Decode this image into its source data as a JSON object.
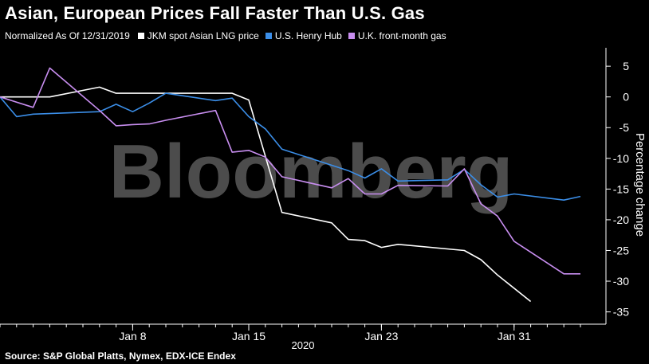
{
  "title": "Asian, European Prices Fall Faster Than U.S. Gas",
  "legend": {
    "normalized": "Normalized As Of 12/31/2019",
    "items": [
      {
        "label": "JKM spot Asian LNG price",
        "color": "#ffffff"
      },
      {
        "label": "U.S. Henry Hub",
        "color": "#3b8ee8"
      },
      {
        "label": "U.K. front-month gas",
        "color": "#c88ef0"
      }
    ]
  },
  "watermark": "Bloomberg",
  "source": "Source: S&P Global Platts, Nymex, EDX-ICE Endex",
  "chart_data": {
    "type": "line",
    "ylabel": "Percentage change",
    "xlabel": "2020",
    "ylim": [
      -37,
      8
    ],
    "xlim": [
      "2019-12-31",
      "2020-02-04"
    ],
    "yticks": [
      5,
      0,
      -5,
      -10,
      -15,
      -20,
      -25,
      -30,
      -35
    ],
    "xticks": [
      {
        "date": "2020-01-08",
        "label": "Jan 8"
      },
      {
        "date": "2020-01-15",
        "label": "Jan 15"
      },
      {
        "date": "2020-01-23",
        "label": "Jan 23"
      },
      {
        "date": "2020-01-31",
        "label": "Jan 31"
      }
    ],
    "series": [
      {
        "name": "JKM spot Asian LNG price",
        "color": "#ffffff",
        "points": [
          [
            "2019-12-31",
            0
          ],
          [
            "2020-01-03",
            0
          ],
          [
            "2020-01-06",
            1.6
          ],
          [
            "2020-01-07",
            0.6
          ],
          [
            "2020-01-13",
            0.6
          ],
          [
            "2020-01-14",
            0.6
          ],
          [
            "2020-01-15",
            -0.5
          ],
          [
            "2020-01-17",
            -18.8
          ],
          [
            "2020-01-20",
            -20.5
          ],
          [
            "2020-01-21",
            -23.2
          ],
          [
            "2020-01-22",
            -23.4
          ],
          [
            "2020-01-23",
            -24.5
          ],
          [
            "2020-01-24",
            -24.0
          ],
          [
            "2020-01-28",
            -25.0
          ],
          [
            "2020-01-29",
            -26.5
          ],
          [
            "2020-01-30",
            -29.0
          ],
          [
            "2020-02-01",
            -33.3
          ]
        ]
      },
      {
        "name": "U.S. Henry Hub",
        "color": "#3b8ee8",
        "points": [
          [
            "2019-12-31",
            0
          ],
          [
            "2020-01-01",
            -3.2
          ],
          [
            "2020-01-02",
            -2.8
          ],
          [
            "2020-01-06",
            -2.4
          ],
          [
            "2020-01-07",
            -1.2
          ],
          [
            "2020-01-08",
            -2.4
          ],
          [
            "2020-01-09",
            -1.0
          ],
          [
            "2020-01-10",
            0.6
          ],
          [
            "2020-01-13",
            -0.6
          ],
          [
            "2020-01-14",
            -0.2
          ],
          [
            "2020-01-15",
            -3.2
          ],
          [
            "2020-01-16",
            -5.2
          ],
          [
            "2020-01-17",
            -8.5
          ],
          [
            "2020-01-21",
            -12.0
          ],
          [
            "2020-01-22",
            -13.2
          ],
          [
            "2020-01-23",
            -11.7
          ],
          [
            "2020-01-24",
            -13.7
          ],
          [
            "2020-01-27",
            -13.5
          ],
          [
            "2020-01-28",
            -11.8
          ],
          [
            "2020-01-29",
            -14.3
          ],
          [
            "2020-01-30",
            -16.3
          ],
          [
            "2020-01-31",
            -15.8
          ],
          [
            "2020-02-03",
            -16.8
          ],
          [
            "2020-02-04",
            -16.2
          ]
        ]
      },
      {
        "name": "U.K. front-month gas",
        "color": "#c88ef0",
        "points": [
          [
            "2019-12-31",
            0
          ],
          [
            "2020-01-02",
            -1.7
          ],
          [
            "2020-01-03",
            4.7
          ],
          [
            "2020-01-06",
            -2.2
          ],
          [
            "2020-01-07",
            -4.7
          ],
          [
            "2020-01-08",
            -4.5
          ],
          [
            "2020-01-09",
            -4.4
          ],
          [
            "2020-01-10",
            -3.8
          ],
          [
            "2020-01-13",
            -2.2
          ],
          [
            "2020-01-14",
            -9.0
          ],
          [
            "2020-01-15",
            -8.7
          ],
          [
            "2020-01-16",
            -9.8
          ],
          [
            "2020-01-17",
            -13.0
          ],
          [
            "2020-01-20",
            -14.8
          ],
          [
            "2020-01-21",
            -13.3
          ],
          [
            "2020-01-22",
            -15.8
          ],
          [
            "2020-01-23",
            -15.8
          ],
          [
            "2020-01-24",
            -14.4
          ],
          [
            "2020-01-27",
            -14.5
          ],
          [
            "2020-01-28",
            -11.7
          ],
          [
            "2020-01-29",
            -17.4
          ],
          [
            "2020-01-30",
            -19.4
          ],
          [
            "2020-01-31",
            -23.5
          ],
          [
            "2020-02-03",
            -28.8
          ],
          [
            "2020-02-04",
            -28.8
          ]
        ]
      }
    ]
  }
}
